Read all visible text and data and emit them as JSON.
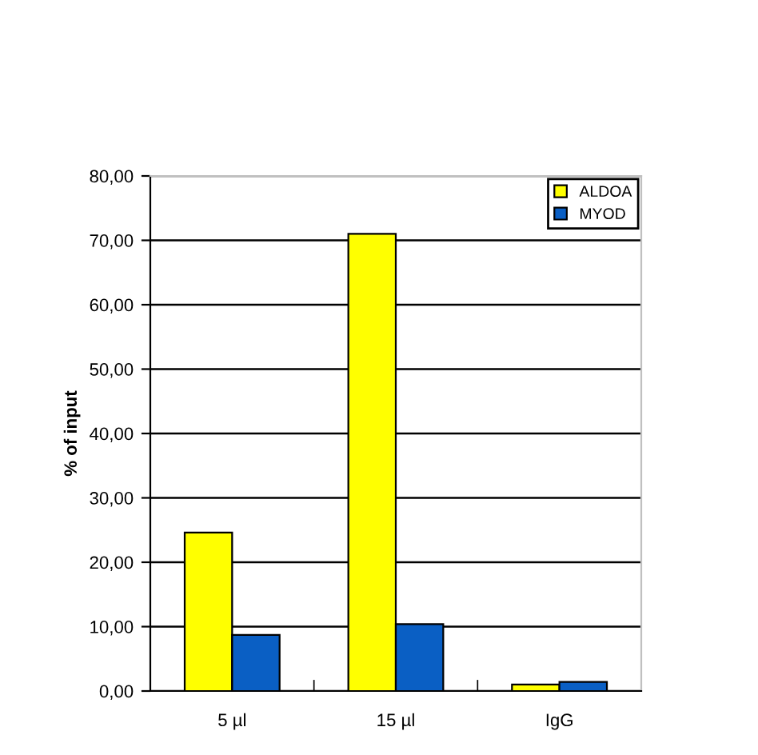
{
  "chart_data": {
    "type": "bar",
    "ylabel": "% of input",
    "categories": [
      "5 µl",
      "15 µl",
      "IgG"
    ],
    "series": [
      {
        "name": "ALDOA",
        "color": "#ffff00",
        "values": [
          24.6,
          71.0,
          1.0
        ]
      },
      {
        "name": "MYOD",
        "color": "#0a5fc4",
        "values": [
          8.7,
          10.4,
          1.4
        ]
      }
    ],
    "ylim": [
      0,
      80
    ],
    "yticks": [
      {
        "value": 0,
        "label": "0,00"
      },
      {
        "value": 10,
        "label": "10,00"
      },
      {
        "value": 20,
        "label": "20,00"
      },
      {
        "value": 30,
        "label": "30,00"
      },
      {
        "value": 40,
        "label": "40,00"
      },
      {
        "value": 50,
        "label": "50,00"
      },
      {
        "value": 60,
        "label": "60,00"
      },
      {
        "value": 70,
        "label": "70,00"
      },
      {
        "value": 80,
        "label": "80,00"
      }
    ],
    "grid": "y",
    "legend": "top right"
  }
}
